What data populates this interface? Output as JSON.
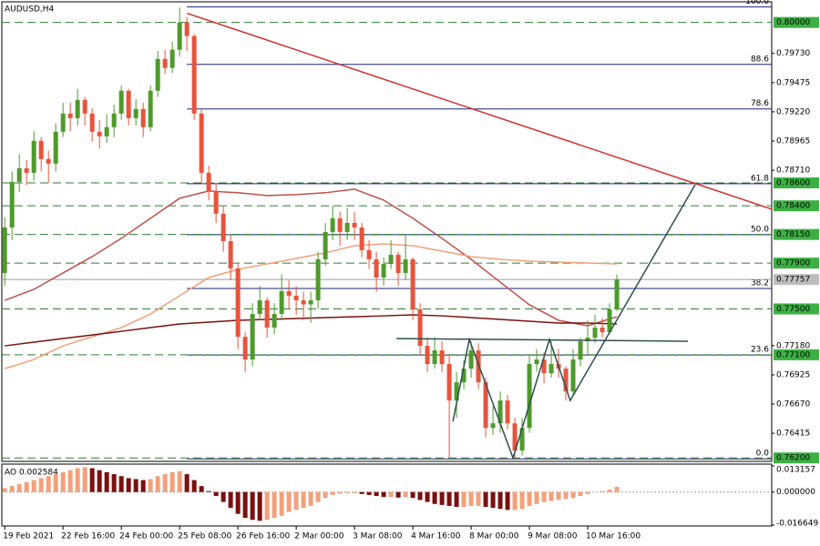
{
  "chart_data": {
    "type": "candlestick",
    "title": "AUDUSD,H4",
    "bull_color": "#4e9a2a",
    "bear_color": "#e8533c",
    "xlim": [
      -0.4,
      105.25
    ],
    "ylim": [
      0.7617,
      0.8018
    ],
    "yticks": [
      {
        "value": 0.7973,
        "label": "0.79730"
      },
      {
        "value": 0.79475,
        "label": "0.79475"
      },
      {
        "value": 0.7922,
        "label": "0.79220"
      },
      {
        "value": 0.78965,
        "label": "0.78965"
      },
      {
        "value": 0.7871,
        "label": "0.78710"
      },
      {
        "value": 0.7718,
        "label": "0.77180"
      },
      {
        "value": 0.76925,
        "label": "0.76925"
      },
      {
        "value": 0.7667,
        "label": "0.76670"
      },
      {
        "value": 0.76415,
        "label": "0.76415"
      }
    ],
    "categories": [
      "19 Feb 2021",
      null,
      null,
      null,
      null,
      null,
      null,
      null,
      "22 Feb 16:00",
      null,
      null,
      null,
      null,
      null,
      null,
      null,
      "24 Feb 00:00",
      null,
      null,
      null,
      null,
      null,
      null,
      null,
      "25 Feb 08:00",
      null,
      null,
      null,
      null,
      null,
      null,
      null,
      "26 Feb 16:00",
      null,
      null,
      null,
      null,
      null,
      null,
      null,
      "2 Mar 00:00",
      null,
      null,
      null,
      null,
      null,
      null,
      null,
      "3 Mar 08:00",
      null,
      null,
      null,
      null,
      null,
      null,
      null,
      "4 Mar 16:00",
      null,
      null,
      null,
      null,
      null,
      null,
      null,
      "8 Mar 00:00",
      null,
      null,
      null,
      null,
      null,
      null,
      null,
      "9 Mar 08:00",
      null,
      null,
      null,
      null,
      null,
      null,
      null,
      "10 Mar 16:00",
      null,
      null,
      null,
      null
    ],
    "candles": [
      [
        0.77814,
        0.783,
        0.777,
        0.78211
      ],
      [
        0.78211,
        0.787,
        0.781,
        0.78609
      ],
      [
        0.78609,
        0.7885,
        0.7852,
        0.78728
      ],
      [
        0.78728,
        0.788,
        0.7858,
        0.78688
      ],
      [
        0.78688,
        0.7905,
        0.7862,
        0.78967
      ],
      [
        0.78967,
        0.79,
        0.787,
        0.78808
      ],
      [
        0.78808,
        0.7888,
        0.786,
        0.78768
      ],
      [
        0.78768,
        0.7912,
        0.787,
        0.79046
      ],
      [
        0.79046,
        0.793,
        0.79,
        0.79205
      ],
      [
        0.79205,
        0.793,
        0.7905,
        0.79165
      ],
      [
        0.79165,
        0.7942,
        0.791,
        0.79324
      ],
      [
        0.79324,
        0.7935,
        0.791,
        0.79205
      ],
      [
        0.79205,
        0.7925,
        0.7896,
        0.79046
      ],
      [
        0.79046,
        0.7915,
        0.789,
        0.79006
      ],
      [
        0.79006,
        0.792,
        0.7895,
        0.79086
      ],
      [
        0.79086,
        0.7928,
        0.79,
        0.79205
      ],
      [
        0.79205,
        0.7945,
        0.7915,
        0.79404
      ],
      [
        0.79404,
        0.7942,
        0.791,
        0.79165
      ],
      [
        0.79165,
        0.7933,
        0.791,
        0.79245
      ],
      [
        0.79245,
        0.793,
        0.79,
        0.79086
      ],
      [
        0.79086,
        0.7945,
        0.7905,
        0.79404
      ],
      [
        0.79404,
        0.7975,
        0.7935,
        0.79682
      ],
      [
        0.79682,
        0.7976,
        0.7955,
        0.79603
      ],
      [
        0.79603,
        0.7983,
        0.7956,
        0.79762
      ],
      [
        0.79762,
        0.8013,
        0.797,
        0.8
      ],
      [
        0.8,
        0.8005,
        0.7975,
        0.79881
      ],
      [
        0.79881,
        0.799,
        0.7915,
        0.79205
      ],
      [
        0.79205,
        0.7925,
        0.786,
        0.78688
      ],
      [
        0.78688,
        0.7875,
        0.7845,
        0.78529
      ],
      [
        0.78529,
        0.786,
        0.7825,
        0.78331
      ],
      [
        0.78331,
        0.784,
        0.78,
        0.78092
      ],
      [
        0.78092,
        0.7815,
        0.7775,
        0.77854
      ],
      [
        0.77854,
        0.779,
        0.7715,
        0.77257
      ],
      [
        0.77257,
        0.773,
        0.7695,
        0.77059
      ],
      [
        0.77059,
        0.7755,
        0.77,
        0.77456
      ],
      [
        0.77456,
        0.777,
        0.774,
        0.77575
      ],
      [
        0.77575,
        0.776,
        0.7725,
        0.77337
      ],
      [
        0.77337,
        0.7755,
        0.7728,
        0.77456
      ],
      [
        0.77456,
        0.778,
        0.774,
        0.77655
      ],
      [
        0.77655,
        0.7775,
        0.775,
        0.77615
      ],
      [
        0.77615,
        0.777,
        0.7745,
        0.77575
      ],
      [
        0.77575,
        0.7765,
        0.774,
        0.7754
      ],
      [
        0.7754,
        0.7765,
        0.7738,
        0.77575
      ],
      [
        0.77575,
        0.78,
        0.775,
        0.77933
      ],
      [
        0.77933,
        0.7825,
        0.7788,
        0.78172
      ],
      [
        0.78172,
        0.784,
        0.781,
        0.78291
      ],
      [
        0.78291,
        0.7835,
        0.7805,
        0.78172
      ],
      [
        0.78172,
        0.7838,
        0.781,
        0.78251
      ],
      [
        0.78251,
        0.7835,
        0.781,
        0.78211
      ],
      [
        0.78211,
        0.7825,
        0.7795,
        0.78013
      ],
      [
        0.78013,
        0.781,
        0.7785,
        0.77933
      ],
      [
        0.77933,
        0.78,
        0.7765,
        0.77774
      ],
      [
        0.77774,
        0.7795,
        0.777,
        0.77893
      ],
      [
        0.77893,
        0.781,
        0.7785,
        0.77973
      ],
      [
        0.77973,
        0.78,
        0.777,
        0.77814
      ],
      [
        0.77814,
        0.7815,
        0.7775,
        0.77933
      ],
      [
        0.77933,
        0.7795,
        0.774,
        0.77496
      ],
      [
        0.77496,
        0.7755,
        0.771,
        0.77178
      ],
      [
        0.77178,
        0.7725,
        0.7695,
        0.77019
      ],
      [
        0.77019,
        0.7725,
        0.7698,
        0.77138
      ],
      [
        0.77138,
        0.7722,
        0.7695,
        0.77019
      ],
      [
        0.77019,
        0.771,
        0.762,
        0.76701
      ],
      [
        0.76701,
        0.7695,
        0.7655,
        0.7686
      ],
      [
        0.7686,
        0.7705,
        0.768,
        0.76979
      ],
      [
        0.76979,
        0.77218,
        0.769,
        0.77138
      ],
      [
        0.77138,
        0.772,
        0.768,
        0.7686
      ],
      [
        0.7686,
        0.769,
        0.7638,
        0.76462
      ],
      [
        0.76462,
        0.7665,
        0.764,
        0.76502
      ],
      [
        0.76502,
        0.7678,
        0.7642,
        0.76701
      ],
      [
        0.76701,
        0.7675,
        0.7645,
        0.76502
      ],
      [
        0.76502,
        0.7655,
        0.762,
        0.76264
      ],
      [
        0.76264,
        0.7655,
        0.7622,
        0.76462
      ],
      [
        0.76462,
        0.771,
        0.7642,
        0.77019
      ],
      [
        0.77019,
        0.7715,
        0.7695,
        0.77059
      ],
      [
        0.77059,
        0.7712,
        0.7685,
        0.76939
      ],
      [
        0.76939,
        0.77218,
        0.769,
        0.77019
      ],
      [
        0.77019,
        0.7715,
        0.769,
        0.76979
      ],
      [
        0.76979,
        0.77,
        0.767,
        0.7678
      ],
      [
        0.7678,
        0.7715,
        0.7675,
        0.77059
      ],
      [
        0.77059,
        0.7725,
        0.77,
        0.77218
      ],
      [
        0.77218,
        0.774,
        0.771,
        0.7725
      ],
      [
        0.7725,
        0.7745,
        0.772,
        0.77337
      ],
      [
        0.77337,
        0.7742,
        0.7725,
        0.77297
      ],
      [
        0.77297,
        0.7755,
        0.7728,
        0.77496
      ],
      [
        0.77496,
        0.778,
        0.7748,
        0.77757
      ]
    ],
    "ma": [
      {
        "color": "#c0504d",
        "x": [
          0,
          4,
          8,
          12,
          16,
          20,
          24,
          28,
          32,
          36,
          40,
          44,
          48,
          52,
          56,
          60,
          64,
          68,
          72,
          76,
          80,
          84
        ],
        "values": [
          0.77575,
          0.77671,
          0.77814,
          0.77957,
          0.78116,
          0.78291,
          0.78466,
          0.78529,
          0.78514,
          0.7849,
          0.78498,
          0.78514,
          0.78545,
          0.7845,
          0.78291,
          0.78116,
          0.77933,
          0.77734,
          0.77536,
          0.77401,
          0.77353,
          0.77432
        ]
      },
      {
        "color": "#f4a07a",
        "x": [
          0,
          4,
          8,
          12,
          16,
          20,
          24,
          28,
          32,
          36,
          40,
          44,
          48,
          52,
          56,
          60,
          64,
          68,
          72,
          76,
          80,
          84
        ],
        "values": [
          0.76979,
          0.77059,
          0.77178,
          0.77257,
          0.77337,
          0.77456,
          0.77615,
          0.77774,
          0.77846,
          0.77893,
          0.77941,
          0.77989,
          0.78052,
          0.78068,
          0.78052,
          0.78005,
          0.77957,
          0.77933,
          0.77917,
          0.77909,
          0.77901,
          0.77893
        ]
      },
      {
        "color": "#7b0f0f",
        "x": [
          0,
          4,
          8,
          12,
          16,
          20,
          24,
          28,
          32,
          36,
          40,
          44,
          48,
          52,
          56,
          60,
          64,
          68,
          72,
          76,
          80,
          84
        ],
        "values": [
          0.77178,
          0.7721,
          0.77242,
          0.77273,
          0.77305,
          0.77337,
          0.77369,
          0.77385,
          0.77401,
          0.77409,
          0.77417,
          0.77425,
          0.77432,
          0.7744,
          0.77448,
          0.7744,
          0.77425,
          0.77409,
          0.77393,
          0.77377,
          0.77377,
          0.77369
        ]
      }
    ],
    "fib": {
      "color": "#1a237e",
      "start": 25,
      "end": 105.25,
      "levels": [
        {
          "ratio": "100.0",
          "price": 0.80135
        },
        {
          "ratio": "88.6",
          "price": 0.79634
        },
        {
          "ratio": "78.6",
          "price": 0.79245
        },
        {
          "ratio": "61.8",
          "price": 0.78593
        },
        {
          "ratio": "50.0",
          "price": 0.78148
        },
        {
          "ratio": "38.2",
          "price": 0.77679
        },
        {
          "ratio": "23.6",
          "price": 0.77098
        },
        {
          "ratio": "0.0",
          "price": 0.76192
        }
      ]
    },
    "levels_color": "#2e7d32",
    "levels": [
      {
        "value": 0.8,
        "label": "0.80000"
      },
      {
        "value": 0.786,
        "label": "0.78600"
      },
      {
        "value": 0.784,
        "label": "0.78400"
      },
      {
        "value": 0.7815,
        "label": "0.78150"
      },
      {
        "value": 0.779,
        "label": "0.77900"
      },
      {
        "value": 0.775,
        "label": "0.77500"
      },
      {
        "value": 0.771,
        "label": "0.77100"
      },
      {
        "value": 0.762,
        "label": "0.76200"
      }
    ],
    "last": {
      "value": 0.77757,
      "label": "0.77757"
    },
    "lines": [
      {
        "color": "#d32f2f",
        "points": [
          [
            25,
            0.8008
          ],
          [
            105.25,
            0.78371
          ]
        ]
      },
      {
        "color": "#2f4f4f",
        "points": [
          [
            61.5,
            0.76518
          ],
          [
            63.75,
            0.77234
          ],
          [
            69.75,
            0.762
          ],
          [
            74.75,
            0.77234
          ],
          [
            77.6,
            0.76701
          ],
          [
            94.75,
            0.78585
          ]
        ]
      },
      {
        "color": "#2f4f4f",
        "points": [
          [
            53.75,
            0.77242
          ],
          [
            93.75,
            0.77218
          ]
        ]
      }
    ],
    "ao": {
      "label": "AO 0.002584",
      "up_color": "#f4a07a",
      "down_color": "#7b0f0f",
      "ylim": [
        -0.016649,
        0.013157
      ],
      "yticks": [
        0.013157,
        {
          "value": 0,
          "label": "0.000000"
        },
        -0.016649
      ],
      "values": [
        0.002,
        0.003,
        0.004,
        0.005,
        0.006,
        0.007,
        0.008,
        0.009,
        0.01,
        0.011,
        0.012,
        0.0125,
        0.012,
        0.011,
        0.01,
        0.009,
        0.008,
        0.007,
        0.0065,
        0.006,
        0.0065,
        0.008,
        0.009,
        0.01,
        0.0105,
        0.009,
        0.006,
        0.003,
        0.0005,
        -0.002,
        -0.005,
        -0.008,
        -0.011,
        -0.013,
        -0.014,
        -0.0145,
        -0.014,
        -0.013,
        -0.012,
        -0.01,
        -0.009,
        -0.008,
        -0.007,
        -0.005,
        -0.003,
        -0.0015,
        -0.0008,
        -0.0005,
        -0.0005,
        -0.001,
        -0.0015,
        -0.002,
        -0.0025,
        -0.0025,
        -0.0028,
        -0.0025,
        -0.003,
        -0.004,
        -0.005,
        -0.006,
        -0.0065,
        -0.007,
        -0.0075,
        -0.0075,
        -0.007,
        -0.007,
        -0.0075,
        -0.008,
        -0.0085,
        -0.009,
        -0.009,
        -0.0085,
        -0.007,
        -0.006,
        -0.005,
        -0.0045,
        -0.004,
        -0.0035,
        -0.003,
        -0.002,
        -0.001,
        0,
        0.0005,
        0.0012,
        0.002584
      ]
    }
  }
}
